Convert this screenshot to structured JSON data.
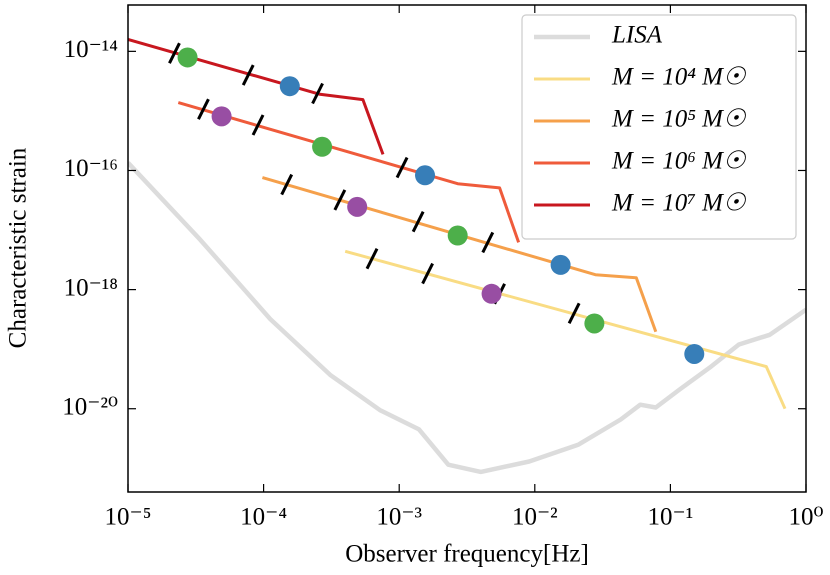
{
  "chart_data": {
    "type": "line",
    "xlabel": "Observer frequency[Hz]",
    "ylabel": "Characteristic strain",
    "xscale": "log",
    "yscale": "log",
    "xlim": [
      1e-05,
      1
    ],
    "ylim": [
      4e-22,
      6e-14
    ],
    "xticks": [
      {
        "value": 1e-05,
        "label": "10⁻⁵"
      },
      {
        "value": 0.0001,
        "label": "10⁻⁴"
      },
      {
        "value": 0.001,
        "label": "10⁻³"
      },
      {
        "value": 0.01,
        "label": "10⁻²"
      },
      {
        "value": 0.1,
        "label": "10⁻¹"
      },
      {
        "value": 1,
        "label": "10⁰"
      }
    ],
    "yticks": [
      {
        "value": 1e-14,
        "label": "10⁻¹⁴"
      },
      {
        "value": 1e-16,
        "label": "10⁻¹⁶"
      },
      {
        "value": 1e-18,
        "label": "10⁻¹⁸"
      },
      {
        "value": 1e-20,
        "label": "10⁻²⁰"
      }
    ],
    "legend": "upper right",
    "series": [
      {
        "name": "LISA",
        "color": "#dcdcdc",
        "x": [
          1e-05,
          3.4e-05,
          0.000112,
          0.00031,
          0.00072,
          0.0014,
          0.0023,
          0.004,
          0.0091,
          0.021,
          0.043,
          0.06,
          0.078,
          0.117,
          0.195,
          0.32,
          0.54,
          1
        ],
        "values": [
          1.35e-16,
          6.9e-18,
          3.2e-19,
          3.7e-20,
          9.5e-21,
          4.5e-21,
          1.15e-21,
          8.7e-22,
          1.3e-21,
          2.5e-21,
          6.6e-21,
          1.17e-20,
          1.05e-20,
          2.1e-20,
          4.9e-20,
          1.2e-19,
          1.74e-19,
          4.6e-19
        ]
      },
      {
        "name": "M = 10⁴ M☉",
        "color": "#f9dc84",
        "x": [
          0.0004,
          0.51,
          0.7
        ],
        "values": [
          4.4e-18,
          5.1e-20,
          1e-20
        ],
        "dots": {
          "x": [
            0.0048,
            0.0275,
            0.15
          ],
          "values": [
            8.5e-19,
            2.7e-19,
            8.3e-20
          ],
          "colors": [
            "#984ea3",
            "#4daf4a",
            "#377eb8"
          ]
        },
        "dashes": {
          "x": [
            0.00063,
            0.00162,
            0.0055,
            0.0195
          ],
          "values": [
            3.3e-18,
            1.86e-18,
            8.5e-19,
            4e-19
          ]
        }
      },
      {
        "name": "M = 10⁵ M☉",
        "color": "#f5a04b",
        "x": [
          9.8e-05,
          0.028,
          0.056,
          0.078
        ],
        "values": [
          7.6e-17,
          1.78e-18,
          1.58e-18,
          1.96e-19
        ],
        "dots": {
          "x": [
            0.00049,
            0.0027,
            0.0155
          ],
          "values": [
            2.45e-17,
            8.1e-18,
            2.6e-18
          ],
          "colors": [
            "#984ea3",
            "#4daf4a",
            "#377eb8"
          ]
        },
        "dashes": {
          "x": [
            0.000148,
            0.000365,
            0.00138,
            0.0045
          ],
          "values": [
            5.8e-17,
            3.2e-17,
            1.38e-17,
            6.2e-18
          ]
        }
      },
      {
        "name": "M = 10⁶ M☉",
        "color": "#ef5b3b",
        "x": [
          2.35e-05,
          0.0027,
          0.0055,
          0.0076
        ],
        "values": [
          1.38e-15,
          6e-17,
          5.1e-17,
          6.2e-18
        ],
        "dots": {
          "x": [
            4.9e-05,
            0.00027,
            0.00155
          ],
          "values": [
            8.1e-16,
            2.5e-16,
            8.3e-17
          ],
          "colors": [
            "#984ea3",
            "#4daf4a",
            "#377eb8"
          ]
        },
        "dashes": {
          "x": [
            3.6e-05,
            9.1e-05,
            0.00105
          ],
          "values": [
            1.07e-15,
            5.8e-16,
            1.12e-16
          ]
        }
      },
      {
        "name": "M = 10⁷ M☉",
        "color": "#c8171f",
        "x": [
          1e-05,
          0.00026,
          0.00054,
          0.00076
        ],
        "values": [
          1.58e-14,
          1.9e-15,
          1.55e-15,
          1.86e-16
        ],
        "dots": {
          "x": [
            2.75e-05,
            0.000156
          ],
          "values": [
            7.9e-15,
            2.6e-15
          ],
          "colors": [
            "#4daf4a",
            "#377eb8"
          ]
        },
        "dashes": {
          "x": [
            2.2e-05,
            7.7e-05,
            0.00025
          ],
          "values": [
            9.3e-15,
            4e-15,
            1.96e-15
          ]
        }
      }
    ]
  }
}
